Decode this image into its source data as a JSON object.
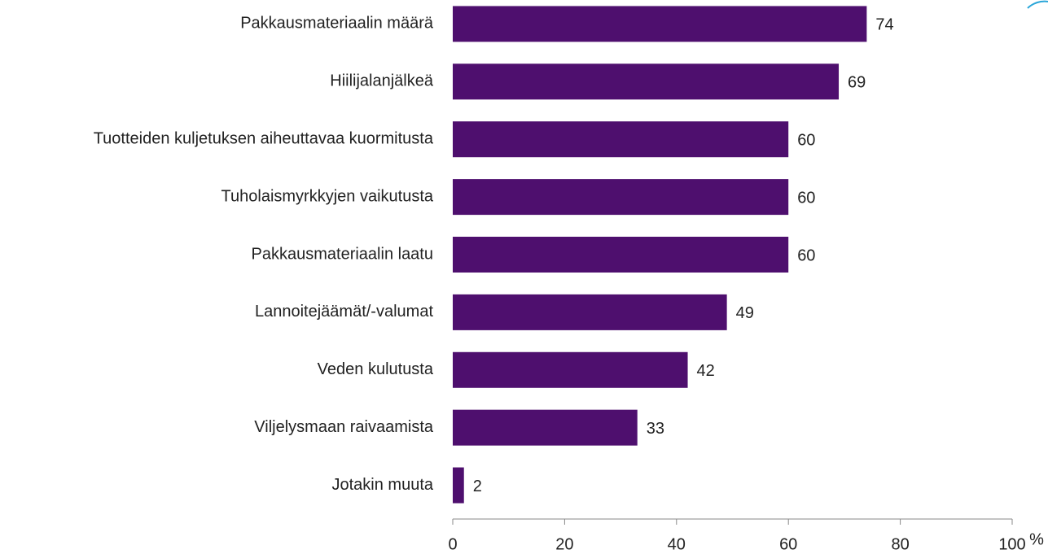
{
  "chart_data": {
    "type": "bar",
    "orientation": "horizontal",
    "categories": [
      "Pakkausmateriaalin määrä",
      "Hiilijalanjälkeä",
      "Tuotteiden kuljetuksen aiheuttavaa kuormitusta",
      "Tuholaismyrkkyjen vaikutusta",
      "Pakkausmateriaalin laatu",
      "Lannoitejäämät/-valumat",
      "Veden kulutusta",
      "Viljelysmaan raivaamista",
      "Jotakin muuta"
    ],
    "values": [
      74,
      69,
      60,
      60,
      60,
      49,
      42,
      33,
      2
    ],
    "color": "#4e0f6e",
    "xlim": [
      0,
      100
    ],
    "xticks": [
      0,
      20,
      40,
      60,
      80,
      100
    ],
    "x_label": "%"
  }
}
